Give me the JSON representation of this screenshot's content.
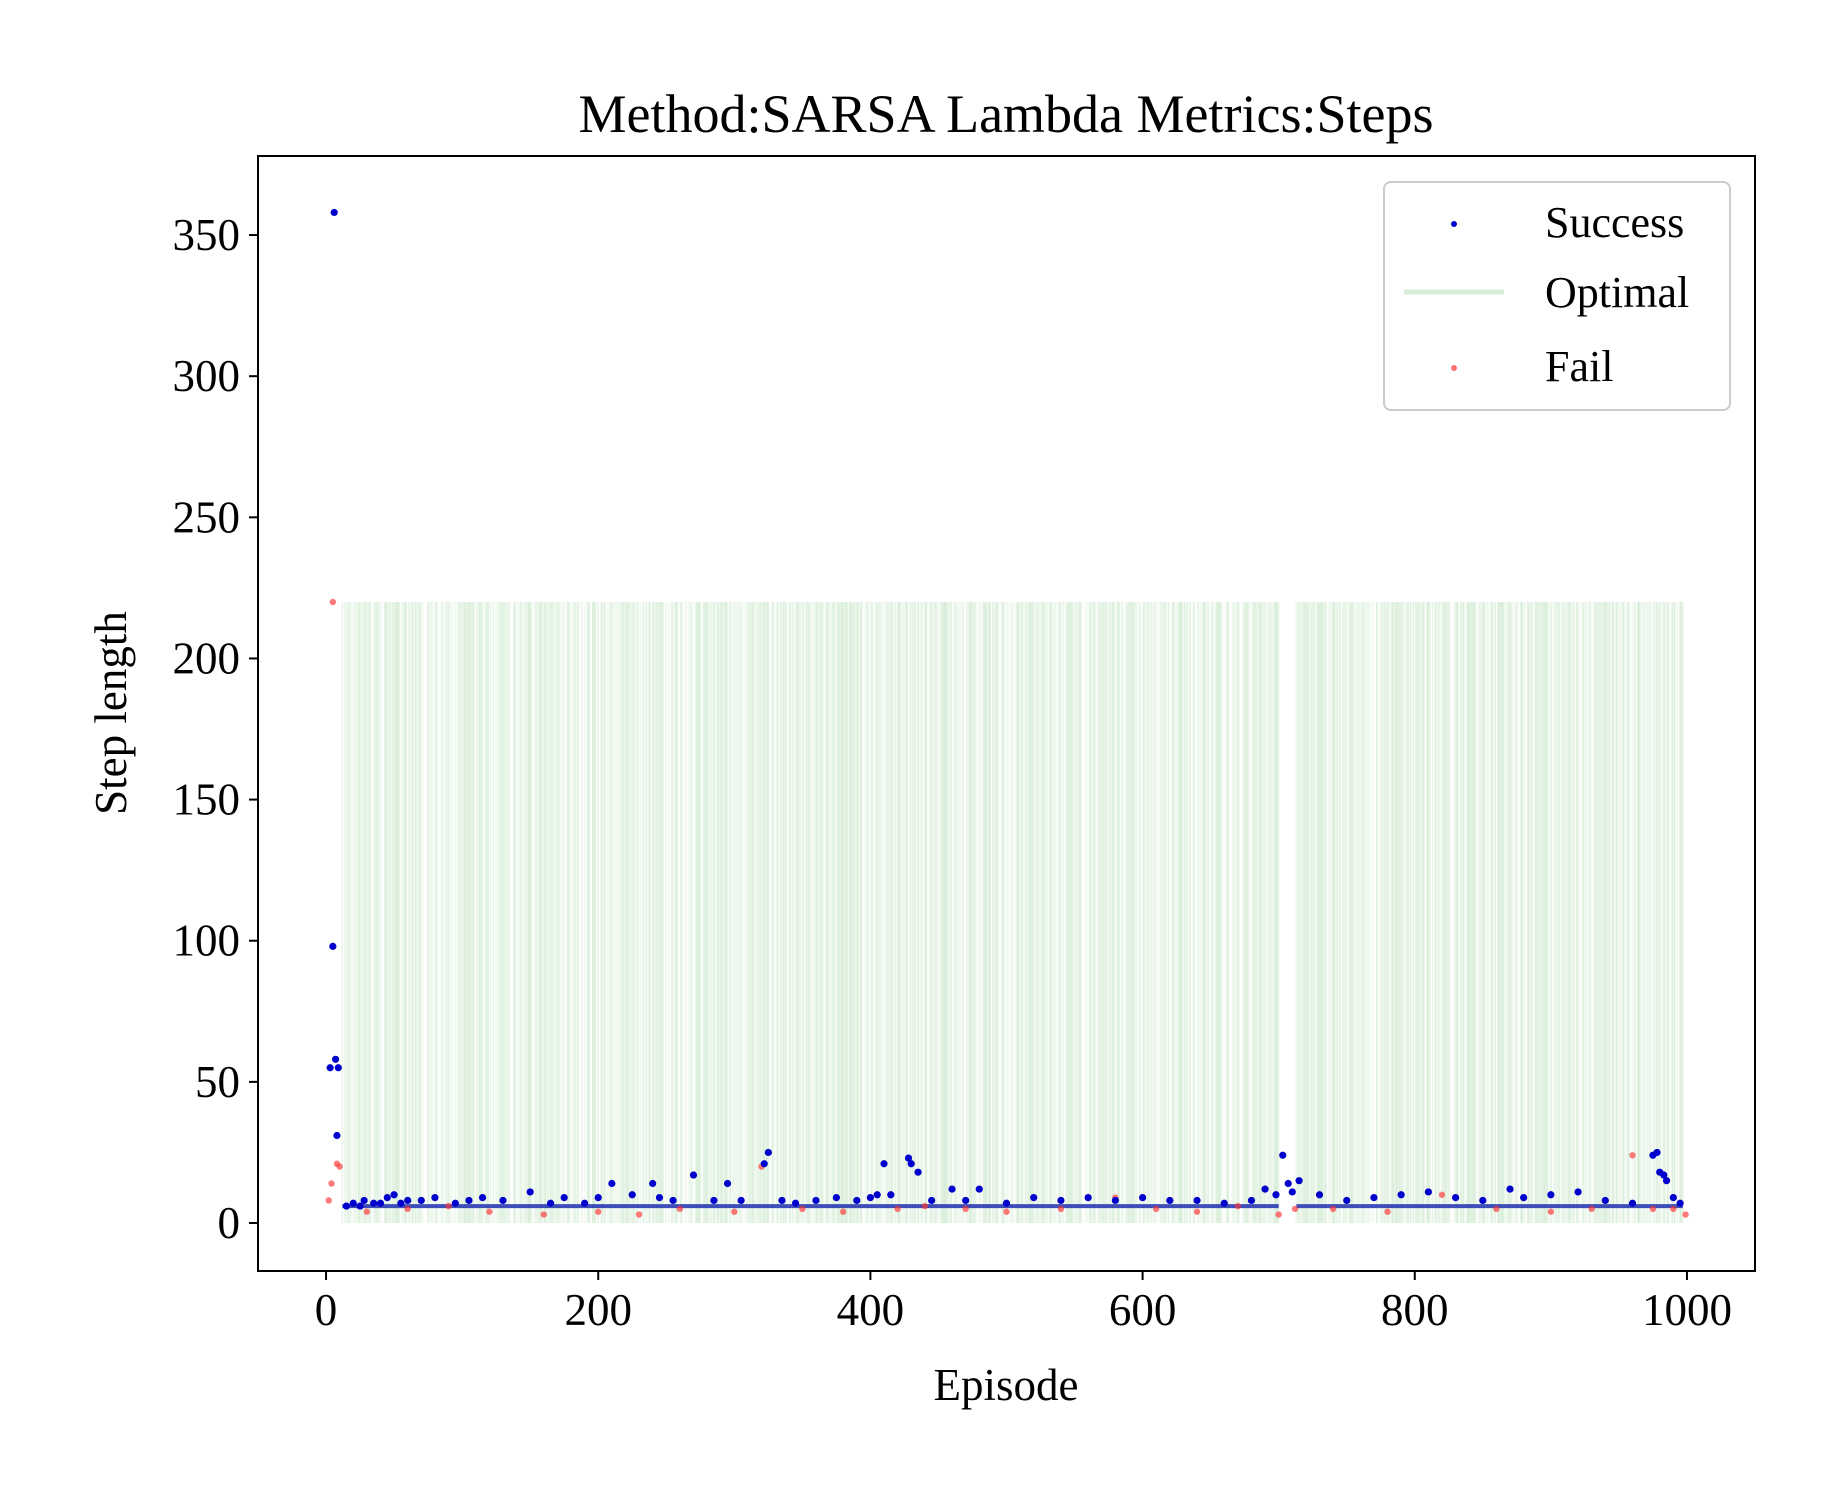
{
  "chart_data": {
    "type": "scatter",
    "title": "Method:SARSA Lambda   Metrics:Steps",
    "xlabel": "Episode",
    "ylabel": "Step length",
    "xlim": [
      -50,
      1050
    ],
    "ylim": [
      -17,
      378
    ],
    "xticks": [
      0,
      200,
      400,
      600,
      800,
      1000
    ],
    "yticks": [
      0,
      50,
      100,
      150,
      200,
      250,
      300,
      350
    ],
    "grid": false,
    "legend": {
      "position": "top-right",
      "entries": [
        {
          "label": "Success",
          "color": "#0000cc",
          "marker": "dot"
        },
        {
          "label": "Optimal",
          "color": "#2ca02c",
          "marker": "line"
        },
        {
          "label": "Fail",
          "color": "#ff3333",
          "marker": "dot"
        }
      ]
    },
    "series": [
      {
        "name": "Success",
        "color": "#0000cc",
        "points": [
          [
            3,
            55
          ],
          [
            5,
            98
          ],
          [
            6,
            358
          ],
          [
            7,
            58
          ],
          [
            8,
            31
          ],
          [
            9,
            55
          ],
          [
            15,
            6
          ],
          [
            20,
            7
          ],
          [
            25,
            6
          ],
          [
            28,
            8
          ],
          [
            35,
            7
          ],
          [
            40,
            7
          ],
          [
            45,
            9
          ],
          [
            50,
            10
          ],
          [
            55,
            7
          ],
          [
            60,
            8
          ],
          [
            70,
            8
          ],
          [
            80,
            9
          ],
          [
            95,
            7
          ],
          [
            105,
            8
          ],
          [
            115,
            9
          ],
          [
            130,
            8
          ],
          [
            150,
            11
          ],
          [
            165,
            7
          ],
          [
            175,
            9
          ],
          [
            190,
            7
          ],
          [
            200,
            9
          ],
          [
            210,
            14
          ],
          [
            225,
            10
          ],
          [
            240,
            14
          ],
          [
            245,
            9
          ],
          [
            255,
            8
          ],
          [
            270,
            17
          ],
          [
            285,
            8
          ],
          [
            295,
            14
          ],
          [
            305,
            8
          ],
          [
            322,
            21
          ],
          [
            325,
            25
          ],
          [
            335,
            8
          ],
          [
            345,
            7
          ],
          [
            360,
            8
          ],
          [
            375,
            9
          ],
          [
            390,
            8
          ],
          [
            400,
            9
          ],
          [
            405,
            10
          ],
          [
            410,
            21
          ],
          [
            415,
            10
          ],
          [
            428,
            23
          ],
          [
            430,
            21
          ],
          [
            435,
            18
          ],
          [
            445,
            8
          ],
          [
            460,
            12
          ],
          [
            470,
            8
          ],
          [
            480,
            12
          ],
          [
            500,
            7
          ],
          [
            520,
            9
          ],
          [
            540,
            8
          ],
          [
            560,
            9
          ],
          [
            580,
            8
          ],
          [
            600,
            9
          ],
          [
            620,
            8
          ],
          [
            640,
            8
          ],
          [
            660,
            7
          ],
          [
            680,
            8
          ],
          [
            690,
            12
          ],
          [
            698,
            10
          ],
          [
            703,
            24
          ],
          [
            707,
            14
          ],
          [
            710,
            11
          ],
          [
            715,
            15
          ],
          [
            730,
            10
          ],
          [
            750,
            8
          ],
          [
            770,
            9
          ],
          [
            790,
            10
          ],
          [
            810,
            11
          ],
          [
            830,
            9
          ],
          [
            850,
            8
          ],
          [
            870,
            12
          ],
          [
            880,
            9
          ],
          [
            900,
            10
          ],
          [
            920,
            11
          ],
          [
            940,
            8
          ],
          [
            960,
            7
          ],
          [
            975,
            24
          ],
          [
            978,
            25
          ],
          [
            980,
            18
          ],
          [
            983,
            17
          ],
          [
            985,
            15
          ],
          [
            990,
            9
          ],
          [
            995,
            7
          ]
        ]
      },
      {
        "name": "Fail",
        "color": "#ff3333",
        "points": [
          [
            2,
            8
          ],
          [
            4,
            14
          ],
          [
            5,
            220
          ],
          [
            8,
            21
          ],
          [
            10,
            20
          ],
          [
            30,
            4
          ],
          [
            60,
            5
          ],
          [
            90,
            6
          ],
          [
            120,
            4
          ],
          [
            160,
            3
          ],
          [
            200,
            4
          ],
          [
            230,
            3
          ],
          [
            260,
            5
          ],
          [
            300,
            4
          ],
          [
            320,
            20
          ],
          [
            350,
            5
          ],
          [
            380,
            4
          ],
          [
            420,
            5
          ],
          [
            440,
            6
          ],
          [
            470,
            5
          ],
          [
            500,
            4
          ],
          [
            540,
            5
          ],
          [
            580,
            9
          ],
          [
            610,
            5
          ],
          [
            640,
            4
          ],
          [
            670,
            6
          ],
          [
            700,
            3
          ],
          [
            712,
            5
          ],
          [
            740,
            5
          ],
          [
            780,
            4
          ],
          [
            820,
            10
          ],
          [
            860,
            5
          ],
          [
            900,
            4
          ],
          [
            930,
            5
          ],
          [
            960,
            24
          ],
          [
            975,
            5
          ],
          [
            990,
            5
          ],
          [
            999,
            3
          ]
        ]
      }
    ],
    "optimal_band": {
      "name": "Optimal",
      "color": "#2ca02c",
      "ymin": 0,
      "ymax": 220,
      "x_start": 12,
      "x_end": 997,
      "gaps": [
        [
          700,
          713
        ]
      ],
      "baseline": 6
    }
  }
}
